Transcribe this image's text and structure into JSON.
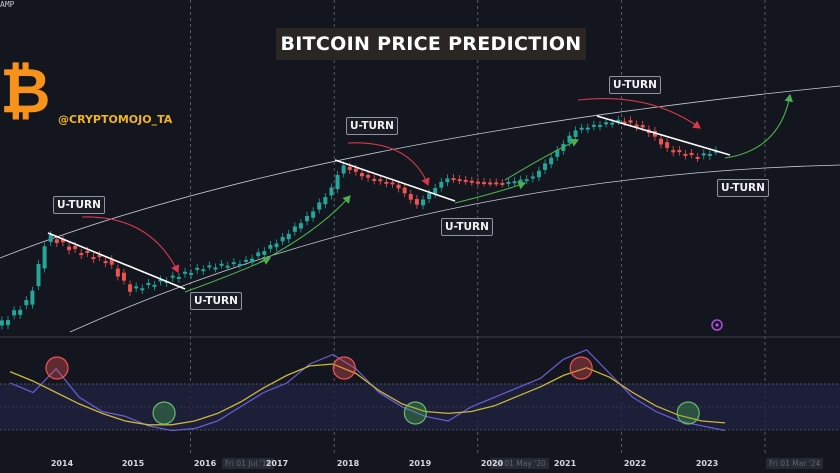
{
  "title": "BITCOIN PRICE PREDICTION",
  "handle": "@CRYPTOMOJO_TA",
  "watermark_top": "AMP",
  "uturn_labels": [
    "U-TURN",
    "U-TURN",
    "U-TURN",
    "U-TURN",
    "U-TURN",
    "U-TURN",
    "U-TURN"
  ],
  "date_boxes": [
    "Fri 01 Jul '16",
    "Fri 01 May '20",
    "Fri 01 Mar '24"
  ],
  "colors": {
    "background": "#14161f",
    "bull": "#26a69a",
    "bear": "#ef5350",
    "title_bg": "#2a2623",
    "bitcoin_orange": "#f7931a",
    "oscillator_band": "#1f2240",
    "oscillator_line": "#6a5fd6",
    "oscillator_ma": "#c9b63a",
    "arrow_red": "#d9384a",
    "arrow_green": "#4caf50"
  },
  "icons": [
    "bitcoin-logo-icon",
    "settings-circle-icon"
  ],
  "chart_data": [
    {
      "type": "candlestick",
      "title": "BITCOIN PRICE PREDICTION",
      "xlabel": "",
      "ylabel": "",
      "x_ticks": [
        "2014",
        "2015",
        "2016",
        "2017",
        "2018",
        "2019",
        "2020",
        "2021",
        "2022",
        "2023"
      ],
      "grid": "vertical dashed lines",
      "annotations": [
        "U-TURN",
        "U-TURN",
        "U-TURN",
        "U-TURN",
        "U-TURN",
        "U-TURN",
        "U-TURN"
      ],
      "cycle_peaks": [
        2013.9,
        2017.95,
        2021.85
      ],
      "cycle_bottoms": [
        2015.0,
        2018.95,
        2022.9
      ],
      "projected_move": "up after 2023"
    },
    {
      "type": "line",
      "title": "",
      "series": [
        {
          "values": [
            0.6,
            0.5,
            0.75,
            0.45,
            0.3,
            0.25,
            0.15,
            0.1,
            0.12,
            0.2,
            0.35,
            0.5,
            0.6,
            0.8,
            0.9,
            0.75,
            0.5,
            0.35,
            0.25,
            0.2,
            0.35,
            0.45,
            0.55,
            0.65,
            0.85,
            0.95,
            0.7,
            0.45,
            0.3,
            0.2,
            0.15,
            0.1
          ]
        },
        {
          "values": [
            0.72,
            0.62,
            0.5,
            0.38,
            0.28,
            0.2,
            0.16,
            0.16,
            0.2,
            0.28,
            0.4,
            0.55,
            0.68,
            0.78,
            0.8,
            0.7,
            0.52,
            0.38,
            0.3,
            0.28,
            0.3,
            0.36,
            0.46,
            0.56,
            0.68,
            0.76,
            0.66,
            0.5,
            0.36,
            0.26,
            0.2,
            0.18
          ]
        }
      ],
      "marked_tops": [
        2014.0,
        2018.0,
        2021.3
      ],
      "marked_bottoms": [
        2015.7,
        2019.2,
        2023.0
      ]
    }
  ]
}
